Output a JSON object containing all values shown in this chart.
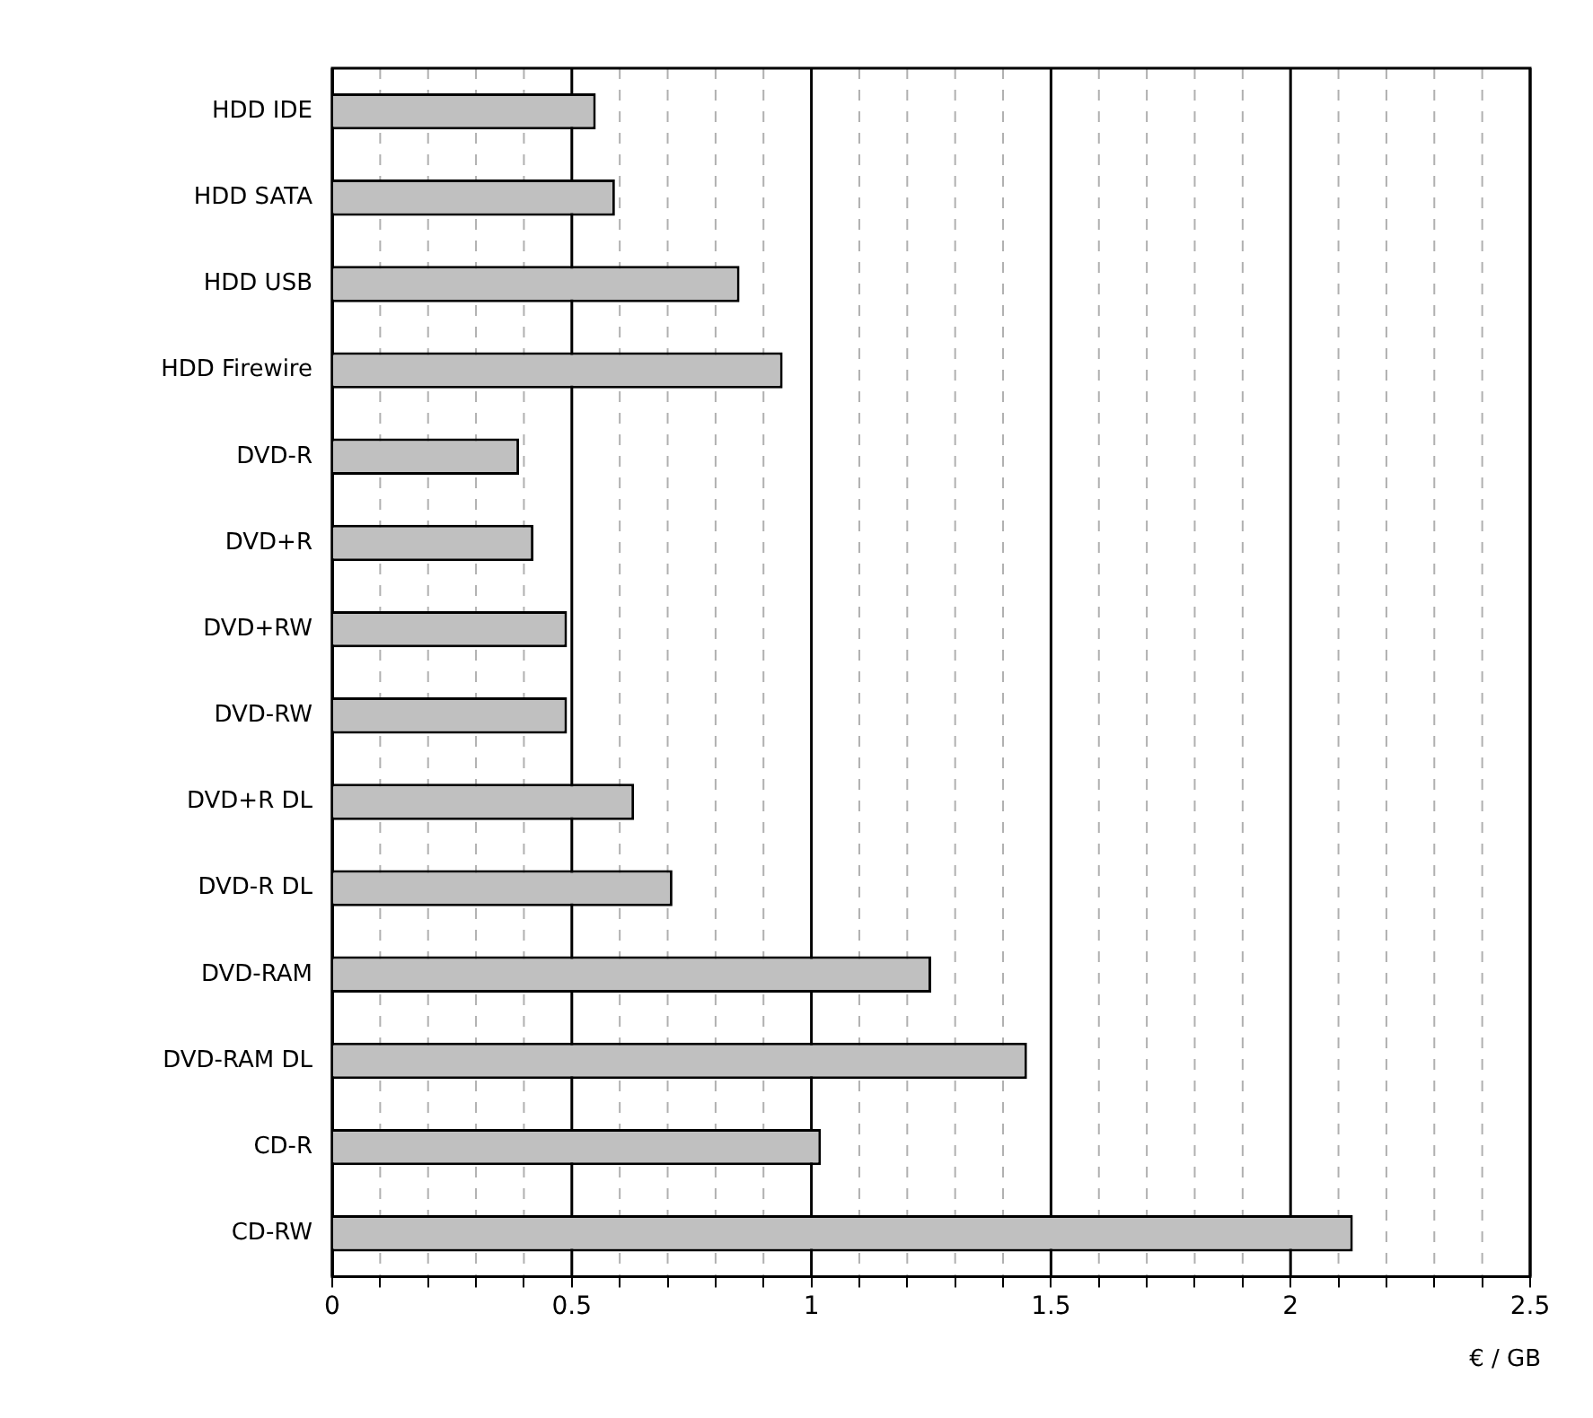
{
  "chart_data": {
    "type": "bar",
    "orientation": "horizontal",
    "xlabel": "€ / GB",
    "categories": [
      "HDD IDE",
      "HDD SATA",
      "HDD USB",
      "HDD Firewire",
      "DVD-R",
      "DVD+R",
      "DVD+RW",
      "DVD-RW",
      "DVD+R DL",
      "DVD-R DL",
      "DVD-RAM",
      "DVD-RAM DL",
      "CD-R",
      "CD-RW"
    ],
    "values": [
      0.55,
      0.59,
      0.85,
      0.94,
      0.39,
      0.42,
      0.49,
      0.49,
      0.63,
      0.71,
      1.25,
      1.45,
      1.02,
      2.13
    ],
    "color": "#c0c0c0",
    "xlim": [
      0,
      2.5
    ],
    "xticks": [
      0,
      {
        "value": 0.1,
        "label": null
      },
      {
        "value": 0.2,
        "label": null
      },
      {
        "value": 0.3,
        "label": null
      },
      {
        "value": 0.4,
        "label": null
      },
      0.5,
      {
        "value": 0.6,
        "label": null
      },
      {
        "value": 0.7,
        "label": null
      },
      {
        "value": 0.8,
        "label": null
      },
      {
        "value": 0.9,
        "label": null
      },
      1,
      {
        "value": 1.1,
        "label": null
      },
      {
        "value": 1.2,
        "label": null
      },
      {
        "value": 1.3,
        "label": null
      },
      {
        "value": 1.4,
        "label": null
      },
      1.5,
      {
        "value": 1.6,
        "label": null
      },
      {
        "value": 1.7,
        "label": null
      },
      {
        "value": 1.8,
        "label": null
      },
      {
        "value": 1.9,
        "label": null
      },
      2,
      {
        "value": 2.1,
        "label": null
      },
      {
        "value": 2.2,
        "label": null
      },
      {
        "value": 2.3,
        "label": null
      },
      {
        "value": 2.4,
        "label": null
      },
      2.5
    ],
    "grid": "x",
    "legend": false
  }
}
